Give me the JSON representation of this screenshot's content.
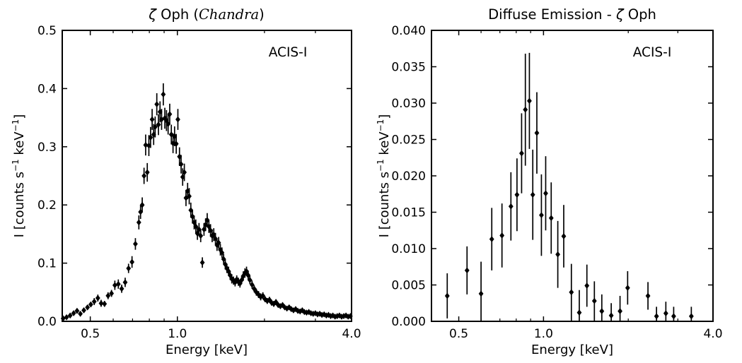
{
  "figure": {
    "background": "#ffffff",
    "foreground": "#000000",
    "instrument_label": "ACIS-I"
  },
  "chart_data": [
    {
      "type": "scatter",
      "panel": "left",
      "title_plain": "ζ Oph (Chandra)",
      "title_parts": [
        {
          "t": "ζ",
          "i": true,
          "serif": false
        },
        {
          "t": " Oph (",
          "i": false,
          "serif": false
        },
        {
          "t": "Chandra",
          "i": true,
          "serif": true
        },
        {
          "t": ")",
          "i": false,
          "serif": false
        }
      ],
      "annotation": "ACIS-I",
      "xlabel": "Energy [keV]",
      "ylabel_plain": "I [counts s⁻¹ keV⁻¹]",
      "ylabel_parts": [
        {
          "t": "I [counts s"
        },
        {
          "t": "−1",
          "sup": true
        },
        {
          "t": " keV"
        },
        {
          "t": "−1",
          "sup": true
        },
        {
          "t": "]"
        }
      ],
      "xscale": "log",
      "xlim": [
        0.4,
        4.0
      ],
      "ylim": [
        0.0,
        0.5
      ],
      "xticks": [
        0.5,
        1.0,
        4.0
      ],
      "xtick_labels": [
        "0.5",
        "1.0",
        "4.0"
      ],
      "xticks_minor": [
        0.6,
        0.7,
        0.8,
        0.9,
        2.0,
        3.0
      ],
      "yticks": [
        0.0,
        0.1,
        0.2,
        0.3,
        0.4,
        0.5
      ],
      "ytick_labels": [
        "0.0",
        "0.1",
        "0.2",
        "0.3",
        "0.4",
        "0.5"
      ],
      "grid": false,
      "legend": null,
      "marker": "diamond",
      "color": "#000000",
      "series": [
        {
          "name": "zeta Oph spectrum (E keV, I, err)",
          "points": [
            [
              0.403,
              0.005,
              0.003
            ],
            [
              0.414,
              0.007,
              0.003
            ],
            [
              0.426,
              0.01,
              0.003
            ],
            [
              0.438,
              0.014,
              0.003
            ],
            [
              0.45,
              0.018,
              0.004
            ],
            [
              0.462,
              0.013,
              0.003
            ],
            [
              0.475,
              0.019,
              0.004
            ],
            [
              0.489,
              0.024,
              0.004
            ],
            [
              0.502,
              0.029,
              0.004
            ],
            [
              0.516,
              0.034,
              0.006
            ],
            [
              0.531,
              0.04,
              0.006
            ],
            [
              0.545,
              0.031,
              0.006
            ],
            [
              0.56,
              0.03,
              0.005
            ],
            [
              0.576,
              0.044,
              0.006
            ],
            [
              0.592,
              0.048,
              0.006
            ],
            [
              0.608,
              0.062,
              0.008
            ],
            [
              0.625,
              0.064,
              0.008
            ],
            [
              0.642,
              0.056,
              0.007
            ],
            [
              0.66,
              0.067,
              0.008
            ],
            [
              0.678,
              0.091,
              0.008
            ],
            [
              0.697,
              0.102,
              0.01
            ],
            [
              0.716,
              0.133,
              0.01
            ],
            [
              0.736,
              0.17,
              0.012
            ],
            [
              0.746,
              0.188,
              0.012
            ],
            [
              0.756,
              0.2,
              0.013
            ],
            [
              0.767,
              0.25,
              0.014
            ],
            [
              0.777,
              0.303,
              0.018
            ],
            [
              0.787,
              0.256,
              0.016
            ],
            [
              0.797,
              0.302,
              0.018
            ],
            [
              0.808,
              0.316,
              0.018
            ],
            [
              0.818,
              0.347,
              0.018
            ],
            [
              0.828,
              0.321,
              0.018
            ],
            [
              0.838,
              0.334,
              0.018
            ],
            [
              0.849,
              0.373,
              0.019
            ],
            [
              0.86,
              0.338,
              0.018
            ],
            [
              0.871,
              0.36,
              0.018
            ],
            [
              0.882,
              0.347,
              0.018
            ],
            [
              0.894,
              0.39,
              0.019
            ],
            [
              0.905,
              0.349,
              0.018
            ],
            [
              0.917,
              0.345,
              0.018
            ],
            [
              0.929,
              0.339,
              0.018
            ],
            [
              0.941,
              0.356,
              0.018
            ],
            [
              0.953,
              0.321,
              0.017
            ],
            [
              0.966,
              0.306,
              0.017
            ],
            [
              0.978,
              0.318,
              0.017
            ],
            [
              0.991,
              0.305,
              0.017
            ],
            [
              1.004,
              0.347,
              0.018
            ],
            [
              1.017,
              0.283,
              0.016
            ],
            [
              1.03,
              0.27,
              0.016
            ],
            [
              1.043,
              0.248,
              0.015
            ],
            [
              1.057,
              0.256,
              0.015
            ],
            [
              1.071,
              0.212,
              0.014
            ],
            [
              1.085,
              0.224,
              0.014
            ],
            [
              1.099,
              0.215,
              0.014
            ],
            [
              1.113,
              0.191,
              0.013
            ],
            [
              1.128,
              0.18,
              0.012
            ],
            [
              1.143,
              0.17,
              0.012
            ],
            [
              1.158,
              0.163,
              0.012
            ],
            [
              1.173,
              0.151,
              0.011
            ],
            [
              1.188,
              0.158,
              0.011
            ],
            [
              1.204,
              0.147,
              0.011
            ],
            [
              1.22,
              0.101,
              0.009
            ],
            [
              1.236,
              0.158,
              0.011
            ],
            [
              1.252,
              0.166,
              0.011
            ],
            [
              1.268,
              0.174,
              0.012
            ],
            [
              1.285,
              0.163,
              0.011
            ],
            [
              1.302,
              0.156,
              0.011
            ],
            [
              1.319,
              0.147,
              0.011
            ],
            [
              1.336,
              0.149,
              0.011
            ],
            [
              1.354,
              0.142,
              0.01
            ],
            [
              1.371,
              0.131,
              0.01
            ],
            [
              1.389,
              0.135,
              0.01
            ],
            [
              1.408,
              0.123,
              0.01
            ],
            [
              1.426,
              0.118,
              0.009
            ],
            [
              1.445,
              0.107,
              0.009
            ],
            [
              1.464,
              0.098,
              0.009
            ],
            [
              1.483,
              0.091,
              0.008
            ],
            [
              1.503,
              0.086,
              0.008
            ],
            [
              1.522,
              0.079,
              0.008
            ],
            [
              1.542,
              0.073,
              0.008
            ],
            [
              1.563,
              0.07,
              0.007
            ],
            [
              1.583,
              0.067,
              0.007
            ],
            [
              1.604,
              0.072,
              0.007
            ],
            [
              1.625,
              0.068,
              0.007
            ],
            [
              1.646,
              0.065,
              0.007
            ],
            [
              1.668,
              0.071,
              0.007
            ],
            [
              1.69,
              0.078,
              0.008
            ],
            [
              1.712,
              0.083,
              0.008
            ],
            [
              1.734,
              0.086,
              0.008
            ],
            [
              1.757,
              0.079,
              0.008
            ],
            [
              1.781,
              0.071,
              0.007
            ],
            [
              1.812,
              0.063,
              0.007
            ],
            [
              1.843,
              0.056,
              0.006
            ],
            [
              1.875,
              0.05,
              0.006
            ],
            [
              1.908,
              0.046,
              0.006
            ],
            [
              1.941,
              0.042,
              0.006
            ],
            [
              1.975,
              0.044,
              0.006
            ],
            [
              2.01,
              0.038,
              0.005
            ],
            [
              2.045,
              0.035,
              0.005
            ],
            [
              2.081,
              0.037,
              0.005
            ],
            [
              2.117,
              0.032,
              0.005
            ],
            [
              2.154,
              0.03,
              0.005
            ],
            [
              2.192,
              0.033,
              0.005
            ],
            [
              2.231,
              0.028,
              0.004
            ],
            [
              2.27,
              0.026,
              0.004
            ],
            [
              2.31,
              0.028,
              0.004
            ],
            [
              2.35,
              0.024,
              0.004
            ],
            [
              2.392,
              0.022,
              0.004
            ],
            [
              2.434,
              0.024,
              0.004
            ],
            [
              2.476,
              0.021,
              0.004
            ],
            [
              2.52,
              0.019,
              0.004
            ],
            [
              2.564,
              0.021,
              0.004
            ],
            [
              2.609,
              0.018,
              0.003
            ],
            [
              2.655,
              0.017,
              0.003
            ],
            [
              2.702,
              0.019,
              0.003
            ],
            [
              2.749,
              0.016,
              0.003
            ],
            [
              2.797,
              0.015,
              0.003
            ],
            [
              2.847,
              0.016,
              0.003
            ],
            [
              2.896,
              0.014,
              0.003
            ],
            [
              2.947,
              0.013,
              0.003
            ],
            [
              2.999,
              0.014,
              0.003
            ],
            [
              3.052,
              0.012,
              0.003
            ],
            [
              3.105,
              0.013,
              0.003
            ],
            [
              3.16,
              0.011,
              0.003
            ],
            [
              3.215,
              0.012,
              0.003
            ],
            [
              3.272,
              0.01,
              0.003
            ],
            [
              3.329,
              0.011,
              0.003
            ],
            [
              3.388,
              0.009,
              0.002
            ],
            [
              3.447,
              0.01,
              0.002
            ],
            [
              3.508,
              0.008,
              0.002
            ],
            [
              3.569,
              0.009,
              0.002
            ],
            [
              3.632,
              0.01,
              0.002
            ],
            [
              3.696,
              0.008,
              0.002
            ],
            [
              3.76,
              0.009,
              0.002
            ],
            [
              3.826,
              0.01,
              0.002
            ],
            [
              3.893,
              0.008,
              0.002
            ],
            [
              3.962,
              0.009,
              0.002
            ]
          ]
        }
      ]
    },
    {
      "type": "scatter",
      "panel": "right",
      "title_plain": "Diffuse Emission - ζ Oph",
      "title_parts": [
        {
          "t": "Diffuse Emission - ",
          "i": false,
          "serif": false
        },
        {
          "t": "ζ",
          "i": true,
          "serif": false
        },
        {
          "t": " Oph",
          "i": false,
          "serif": false
        }
      ],
      "annotation": "ACIS-I",
      "xlabel": "Energy [keV]",
      "ylabel_plain": "I [counts s⁻¹ keV⁻¹]",
      "ylabel_parts": [
        {
          "t": "I [counts s"
        },
        {
          "t": "−1",
          "sup": true
        },
        {
          "t": " keV"
        },
        {
          "t": "−1",
          "sup": true
        },
        {
          "t": "]"
        }
      ],
      "xscale": "log",
      "xlim": [
        0.4,
        4.0
      ],
      "ylim": [
        0.0,
        0.04
      ],
      "xticks": [
        0.5,
        1.0,
        4.0
      ],
      "xtick_labels": [
        "0.5",
        "1.0",
        "4.0"
      ],
      "xticks_minor": [
        0.6,
        0.7,
        0.8,
        0.9,
        2.0,
        3.0
      ],
      "yticks": [
        0.0,
        0.005,
        0.01,
        0.015,
        0.02,
        0.025,
        0.03,
        0.035,
        0.04
      ],
      "ytick_labels": [
        "0.000",
        "0.005",
        "0.010",
        "0.015",
        "0.020",
        "0.025",
        "0.030",
        "0.035",
        "0.040"
      ],
      "grid": false,
      "legend": null,
      "marker": "diamond",
      "color": "#000000",
      "series": [
        {
          "name": "diffuse emission spectrum (E keV, I, err)",
          "points": [
            [
              0.455,
              0.0035,
              0.0031
            ],
            [
              0.535,
              0.007,
              0.0033
            ],
            [
              0.6,
              0.0038,
              0.0044
            ],
            [
              0.655,
              0.0113,
              0.0043
            ],
            [
              0.712,
              0.0118,
              0.0044
            ],
            [
              0.766,
              0.0158,
              0.0047
            ],
            [
              0.805,
              0.0174,
              0.005
            ],
            [
              0.836,
              0.0231,
              0.0055
            ],
            [
              0.862,
              0.0291,
              0.0077
            ],
            [
              0.891,
              0.0303,
              0.0066
            ],
            [
              0.916,
              0.0174,
              0.0062
            ],
            [
              0.947,
              0.0259,
              0.0056
            ],
            [
              0.983,
              0.0146,
              0.0056
            ],
            [
              1.018,
              0.0176,
              0.0051
            ],
            [
              1.065,
              0.0142,
              0.0049
            ],
            [
              1.124,
              0.0092,
              0.0046
            ],
            [
              1.18,
              0.0117,
              0.0043
            ],
            [
              1.256,
              0.004,
              0.0039
            ],
            [
              1.34,
              0.0012,
              0.0031
            ],
            [
              1.426,
              0.0049,
              0.0029
            ],
            [
              1.516,
              0.0028,
              0.0027
            ],
            [
              1.611,
              0.0014,
              0.0023
            ],
            [
              1.74,
              0.0008,
              0.0017
            ],
            [
              1.87,
              0.0014,
              0.0021
            ],
            [
              1.99,
              0.0046,
              0.0023
            ],
            [
              2.35,
              0.0035,
              0.0019
            ],
            [
              2.52,
              0.0007,
              0.0013
            ],
            [
              2.72,
              0.0011,
              0.0016
            ],
            [
              2.9,
              0.0007,
              0.0013
            ],
            [
              3.35,
              0.0007,
              0.0013
            ]
          ]
        }
      ]
    }
  ]
}
